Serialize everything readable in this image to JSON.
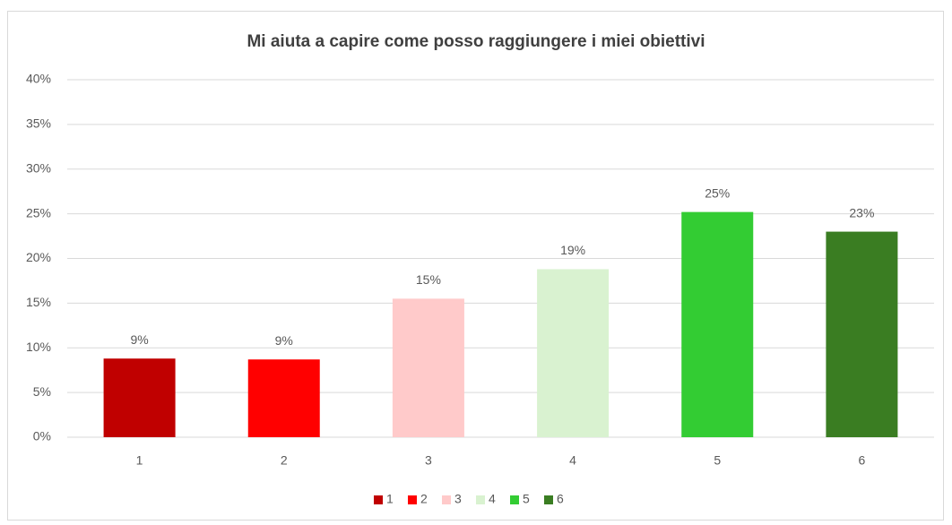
{
  "chart_data": {
    "type": "bar",
    "title": "Mi aiuta a capire come posso raggiungere i miei obiettivi",
    "categories": [
      "1",
      "2",
      "3",
      "4",
      "5",
      "6"
    ],
    "values": [
      8.8,
      8.7,
      15.5,
      18.8,
      25.2,
      23.0
    ],
    "value_labels": [
      "9%",
      "9%",
      "15%",
      "19%",
      "25%",
      "23%"
    ],
    "colors": [
      "#c00000",
      "#ff0000",
      "#ffcaca",
      "#d9f2d0",
      "#33cc33",
      "#3a7d22"
    ],
    "ylim": [
      0,
      40
    ],
    "yticks": [
      {
        "value": 0,
        "label": "0%"
      },
      {
        "value": 5,
        "label": "5%"
      },
      {
        "value": 10,
        "label": "10%"
      },
      {
        "value": 15,
        "label": "15%"
      },
      {
        "value": 20,
        "label": "20%"
      },
      {
        "value": 25,
        "label": "25%"
      },
      {
        "value": 30,
        "label": "30%"
      },
      {
        "value": 35,
        "label": "35%"
      },
      {
        "value": 40,
        "label": "40%"
      }
    ],
    "grid": true,
    "legend": "bottom"
  }
}
